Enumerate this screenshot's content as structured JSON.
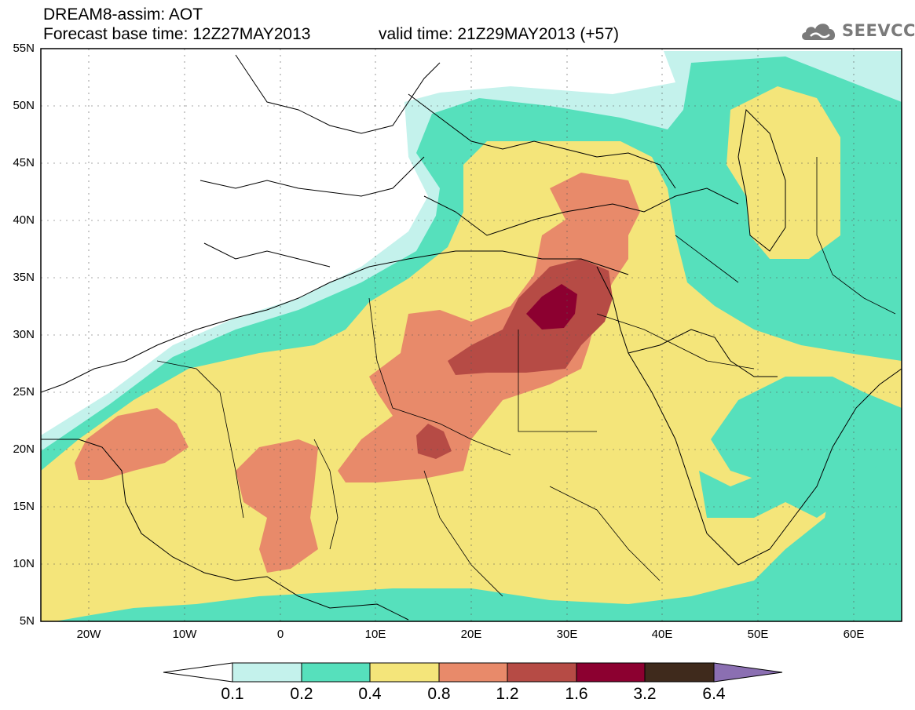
{
  "header": {
    "title": "DREAM8-assim: AOT",
    "base_time": "Forecast base time: 12Z27MAY2013",
    "valid_time": "valid time: 21Z29MAY2013 (+57)"
  },
  "logo": {
    "text": "SEEVCCC",
    "icon": "cloud-icon"
  },
  "map": {
    "lon_range": [
      -25,
      65
    ],
    "lat_range": [
      5,
      55
    ],
    "lat_ticks": [
      "55N",
      "50N",
      "45N",
      "40N",
      "35N",
      "30N",
      "25N",
      "20N",
      "15N",
      "10N",
      "5N"
    ],
    "lon_ticks": [
      "20W",
      "10W",
      "0",
      "10E",
      "20E",
      "30E",
      "40E",
      "50E",
      "60E"
    ]
  },
  "colorbar": {
    "labels": [
      "0.1",
      "0.2",
      "0.4",
      "0.8",
      "1.2",
      "1.6",
      "3.2",
      "6.4"
    ],
    "colors": [
      "#c4f2ec",
      "#56e0bc",
      "#f4e57a",
      "#e88a6a",
      "#b64b45",
      "#8c0030",
      "#3f2a1c",
      "#8b6fb2"
    ]
  }
}
